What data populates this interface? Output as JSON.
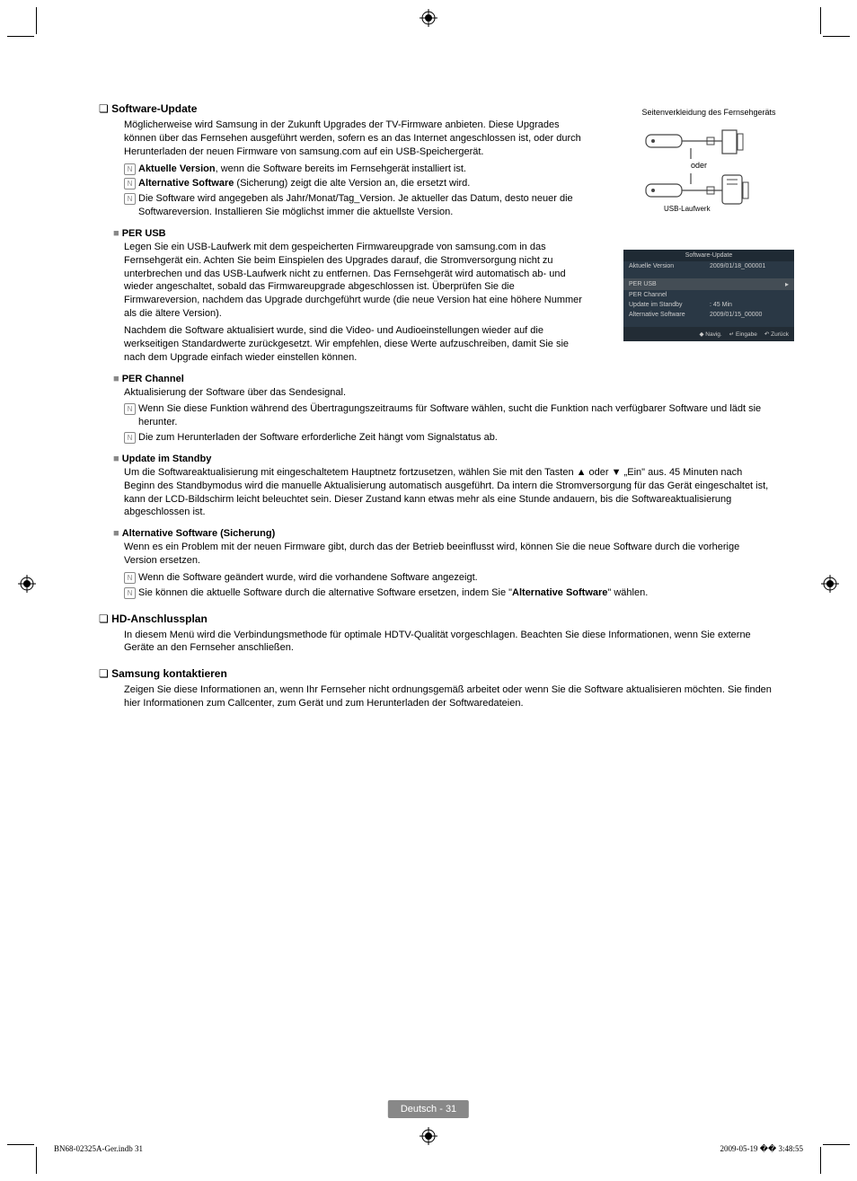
{
  "sections": {
    "software_update": {
      "title": "Software-Update",
      "intro": "Möglicherweise wird Samsung in der Zukunft Upgrades der TV-Firmware anbieten. Diese Upgrades können über das Fernsehen ausgeführt werden, sofern es an das Internet angeschlossen ist, oder durch Herunterladen der neuen Firmware von samsung.com auf ein USB-Speichergerät.",
      "notes": [
        {
          "bold": "Aktuelle Version",
          "text": ", wenn die Software bereits im Fernsehgerät installiert ist."
        },
        {
          "bold": "Alternative Software",
          "text": " (Sicherung) zeigt die alte Version an, die ersetzt wird."
        },
        {
          "bold": "",
          "text": "Die Software wird angegeben als Jahr/Monat/Tag_Version. Je aktueller das Datum, desto neuer die Softwareversion. Installieren Sie möglichst immer die aktuellste Version."
        }
      ]
    },
    "per_usb": {
      "title": "PER USB",
      "p1": "Legen Sie ein USB-Laufwerk mit dem gespeicherten Firmwareupgrade von samsung.com in das Fernsehgerät ein. Achten Sie beim Einspielen des Upgrades darauf, die Stromversorgung nicht zu unterbrechen und das USB-Laufwerk nicht zu entfernen. Das Fernsehgerät wird automatisch ab- und wieder angeschaltet, sobald das Firmwareupgrade abgeschlossen ist. Überprüfen Sie die Firmwareversion, nachdem das Upgrade durchgeführt wurde (die neue Version hat eine höhere Nummer als die ältere Version).",
      "p2": "Nachdem die Software aktualisiert wurde, sind die Video- und Audioeinstellungen wieder auf die werkseitigen Standardwerte zurückgesetzt. Wir empfehlen, diese Werte aufzuschreiben, damit Sie sie nach dem Upgrade einfach wieder einstellen können."
    },
    "per_channel": {
      "title": "PER Channel",
      "p1": "Aktualisierung der Software über das Sendesignal.",
      "notes": [
        "Wenn Sie diese Funktion während des Übertragungszeitraums für Software wählen, sucht die Funktion nach verfügbarer Software und lädt sie herunter.",
        "Die zum Herunterladen der Software erforderliche Zeit hängt vom Signalstatus ab."
      ]
    },
    "update_standby": {
      "title": "Update im Standby",
      "p1": "Um die Softwareaktualisierung mit eingeschaltetem Hauptnetz fortzusetzen, wählen Sie mit den Tasten ▲ oder ▼ „Ein\" aus. 45 Minuten nach Beginn des Standbymodus wird die manuelle Aktualisierung automatisch ausgeführt. Da intern die Stromversorgung für das Gerät eingeschaltet ist, kann der LCD-Bildschirm leicht beleuchtet sein. Dieser Zustand kann etwas mehr als eine Stunde andauern, bis die Softwareaktualisierung abgeschlossen ist."
    },
    "alt_software": {
      "title": "Alternative Software (Sicherung)",
      "p1": "Wenn es ein Problem mit der neuen Firmware gibt, durch das der Betrieb beeinflusst wird, können Sie die neue Software durch die vorherige Version ersetzen.",
      "notes": [
        "Wenn die Software geändert wurde, wird die vorhandene Software angezeigt.",
        "Sie können die aktuelle Software durch die alternative Software ersetzen, indem Sie \"Alternative Software\" wählen."
      ],
      "bold_in_note2": "Alternative Software"
    },
    "hd": {
      "title": "HD-Anschlussplan",
      "p1": "In diesem Menü wird die Verbindungsmethode für optimale HDTV-Qualität vorgeschlagen. Beachten Sie diese Informationen, wenn Sie externe Geräte an den Fernseher anschließen."
    },
    "contact": {
      "title": "Samsung kontaktieren",
      "p1": "Zeigen Sie diese Informationen an, wenn Ihr Fernseher nicht ordnungsgemäß arbeitet oder wenn Sie die Software aktualisieren möchten. Sie finden hier Informationen zum Callcenter, zum Gerät und zum Herunterladen der Softwaredateien."
    }
  },
  "diagram": {
    "label": "Seitenverkleidung des Fernsehgeräts",
    "or": "oder",
    "usb_label": "USB-Laufwerk"
  },
  "osd": {
    "title": "Software-Update",
    "rows": [
      {
        "k": "Aktuelle Version",
        "v": "2009/01/18_000001"
      }
    ],
    "highlight": "PER USB",
    "rows2": [
      {
        "k": "PER Channel",
        "v": ""
      },
      {
        "k": "Update im Standby",
        "v": ": 45 Min"
      },
      {
        "k": "Alternative Software",
        "v": "2009/01/15_00000"
      }
    ],
    "footer": [
      {
        "icon": "◆",
        "label": "Navig."
      },
      {
        "icon": "↵",
        "label": "Eingabe"
      },
      {
        "icon": "↶",
        "label": "Zurück"
      }
    ],
    "colors": {
      "bg": "#2a3845",
      "title_bg": "#1f2a34",
      "hl_bg": "#444d55",
      "footer_bg": "#222c35",
      "text": "#ccc"
    }
  },
  "footer": {
    "page_label": "Deutsch - 31",
    "imprint_left": "BN68-02325A-Ger.indb   31",
    "imprint_right": "2009-05-19   �� 3:48:55"
  }
}
